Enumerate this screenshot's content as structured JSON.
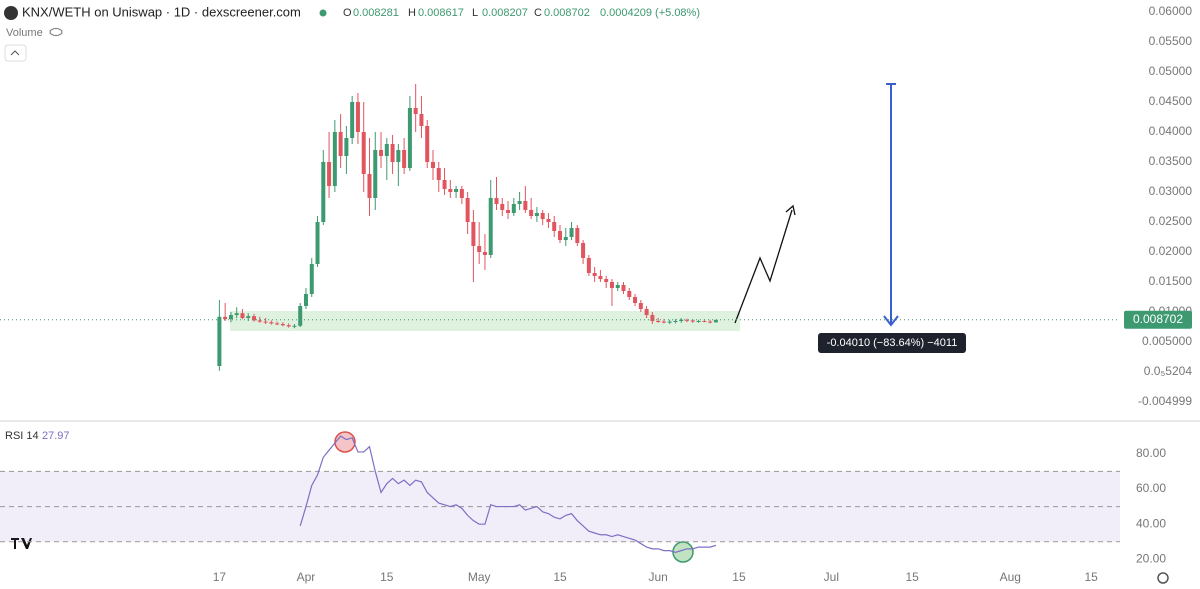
{
  "chart_data": {
    "type": "candlestick",
    "title": "KNX/WETH on Uniswap · 1D · dexscreener.com",
    "volume_label": "Volume",
    "ohlc_labels": [
      "O",
      "H",
      "L",
      "C"
    ],
    "change_label": "0.0004209 (+5.08%)",
    "up_color": "#3d9970",
    "down_color": "#e0555e",
    "x": [
      "03-17",
      "03-18",
      "03-19",
      "03-20",
      "03-21",
      "03-22",
      "03-23",
      "03-24",
      "03-25",
      "03-26",
      "03-27",
      "03-28",
      "03-29",
      "03-30",
      "03-31",
      "04-01",
      "04-02",
      "04-03",
      "04-04",
      "04-05",
      "04-06",
      "04-07",
      "04-08",
      "04-09",
      "04-10",
      "04-11",
      "04-12",
      "04-13",
      "04-14",
      "04-15",
      "04-16",
      "04-17",
      "04-18",
      "04-19",
      "04-20",
      "04-21",
      "04-22",
      "04-23",
      "04-24",
      "04-25",
      "04-26",
      "04-27",
      "04-28",
      "04-29",
      "04-30",
      "05-01",
      "05-02",
      "05-03",
      "05-04",
      "05-05",
      "05-06",
      "05-07",
      "05-08",
      "05-09",
      "05-10",
      "05-11",
      "05-12",
      "05-13",
      "05-14",
      "05-15",
      "05-16",
      "05-17",
      "05-18",
      "05-19",
      "05-20",
      "05-21",
      "05-22",
      "05-23",
      "05-24",
      "05-25",
      "05-26",
      "05-27",
      "05-28",
      "05-29",
      "05-30",
      "05-31",
      "06-01",
      "06-02",
      "06-03",
      "06-04",
      "06-05",
      "06-06",
      "06-07",
      "06-08",
      "06-09",
      "06-10",
      "06-11"
    ],
    "ohlc": [
      [
        0.001,
        0.012,
        0.0002,
        0.0092
      ],
      [
        0.0092,
        0.0115,
        0.0085,
        0.0088
      ],
      [
        0.0088,
        0.01,
        0.0083,
        0.0095
      ],
      [
        0.0095,
        0.0108,
        0.009,
        0.0098
      ],
      [
        0.0098,
        0.0105,
        0.0088,
        0.009
      ],
      [
        0.009,
        0.0098,
        0.0085,
        0.0093
      ],
      [
        0.0093,
        0.0097,
        0.0084,
        0.0086
      ],
      [
        0.0086,
        0.0092,
        0.0082,
        0.0084
      ],
      [
        0.0084,
        0.009,
        0.008,
        0.0083
      ],
      [
        0.0083,
        0.0086,
        0.0079,
        0.0081
      ],
      [
        0.0081,
        0.0084,
        0.0078,
        0.008
      ],
      [
        0.008,
        0.0083,
        0.0076,
        0.0078
      ],
      [
        0.0078,
        0.0081,
        0.0074,
        0.0076
      ],
      [
        0.0076,
        0.008,
        0.0073,
        0.0077
      ],
      [
        0.0077,
        0.0115,
        0.0075,
        0.011
      ],
      [
        0.011,
        0.014,
        0.0105,
        0.013
      ],
      [
        0.013,
        0.019,
        0.0125,
        0.018
      ],
      [
        0.018,
        0.026,
        0.0175,
        0.025
      ],
      [
        0.025,
        0.037,
        0.0245,
        0.035
      ],
      [
        0.035,
        0.04,
        0.029,
        0.031
      ],
      [
        0.031,
        0.042,
        0.03,
        0.04
      ],
      [
        0.04,
        0.043,
        0.034,
        0.036
      ],
      [
        0.036,
        0.041,
        0.033,
        0.039
      ],
      [
        0.039,
        0.046,
        0.038,
        0.045
      ],
      [
        0.045,
        0.0465,
        0.038,
        0.04
      ],
      [
        0.04,
        0.045,
        0.03,
        0.033
      ],
      [
        0.033,
        0.039,
        0.026,
        0.029
      ],
      [
        0.029,
        0.04,
        0.027,
        0.037
      ],
      [
        0.037,
        0.04,
        0.034,
        0.036
      ],
      [
        0.036,
        0.039,
        0.032,
        0.038
      ],
      [
        0.038,
        0.0395,
        0.033,
        0.035
      ],
      [
        0.035,
        0.038,
        0.031,
        0.037
      ],
      [
        0.037,
        0.039,
        0.033,
        0.034
      ],
      [
        0.034,
        0.046,
        0.0335,
        0.044
      ],
      [
        0.044,
        0.048,
        0.04,
        0.043
      ],
      [
        0.043,
        0.046,
        0.039,
        0.041
      ],
      [
        0.041,
        0.042,
        0.034,
        0.035
      ],
      [
        0.035,
        0.037,
        0.032,
        0.034
      ],
      [
        0.034,
        0.035,
        0.03,
        0.032
      ],
      [
        0.032,
        0.034,
        0.0295,
        0.0305
      ],
      [
        0.0305,
        0.032,
        0.029,
        0.03
      ],
      [
        0.03,
        0.031,
        0.029,
        0.0305
      ],
      [
        0.0305,
        0.031,
        0.028,
        0.029
      ],
      [
        0.029,
        0.03,
        0.023,
        0.025
      ],
      [
        0.025,
        0.027,
        0.015,
        0.021
      ],
      [
        0.021,
        0.025,
        0.018,
        0.02
      ],
      [
        0.02,
        0.023,
        0.017,
        0.0195
      ],
      [
        0.0195,
        0.032,
        0.019,
        0.029
      ],
      [
        0.029,
        0.0325,
        0.027,
        0.028
      ],
      [
        0.028,
        0.029,
        0.026,
        0.027
      ],
      [
        0.027,
        0.0285,
        0.0255,
        0.0265
      ],
      [
        0.0265,
        0.029,
        0.026,
        0.028
      ],
      [
        0.028,
        0.03,
        0.027,
        0.0285
      ],
      [
        0.0285,
        0.031,
        0.0265,
        0.027
      ],
      [
        0.027,
        0.029,
        0.0255,
        0.026
      ],
      [
        0.026,
        0.0275,
        0.025,
        0.0265
      ],
      [
        0.0265,
        0.027,
        0.0245,
        0.0255
      ],
      [
        0.0255,
        0.0265,
        0.024,
        0.025
      ],
      [
        0.025,
        0.026,
        0.0225,
        0.0235
      ],
      [
        0.0235,
        0.0245,
        0.0215,
        0.022
      ],
      [
        0.022,
        0.024,
        0.021,
        0.0225
      ],
      [
        0.0225,
        0.025,
        0.022,
        0.024
      ],
      [
        0.024,
        0.0245,
        0.021,
        0.0215
      ],
      [
        0.0215,
        0.022,
        0.018,
        0.019
      ],
      [
        0.019,
        0.0195,
        0.016,
        0.0165
      ],
      [
        0.0165,
        0.0175,
        0.015,
        0.016
      ],
      [
        0.016,
        0.017,
        0.015,
        0.0155
      ],
      [
        0.0155,
        0.016,
        0.014,
        0.015
      ],
      [
        0.015,
        0.0155,
        0.011,
        0.014
      ],
      [
        0.014,
        0.015,
        0.0135,
        0.0145
      ],
      [
        0.0145,
        0.015,
        0.013,
        0.0135
      ],
      [
        0.0135,
        0.014,
        0.012,
        0.0125
      ],
      [
        0.0125,
        0.013,
        0.011,
        0.0115
      ],
      [
        0.0115,
        0.012,
        0.01,
        0.0105
      ],
      [
        0.0105,
        0.011,
        0.009,
        0.0095
      ],
      [
        0.0095,
        0.01,
        0.008,
        0.0085
      ],
      [
        0.0085,
        0.009,
        0.0082,
        0.0084
      ],
      [
        0.0084,
        0.0088,
        0.0081,
        0.0083
      ],
      [
        0.0083,
        0.0087,
        0.008,
        0.0084
      ],
      [
        0.0084,
        0.0088,
        0.0081,
        0.0085
      ],
      [
        0.0085,
        0.009,
        0.0082,
        0.0087
      ],
      [
        0.0087,
        0.0089,
        0.0083,
        0.0086
      ],
      [
        0.0086,
        0.0088,
        0.0082,
        0.0084
      ],
      [
        0.0084,
        0.0087,
        0.0082,
        0.0085
      ],
      [
        0.0085,
        0.0088,
        0.0083,
        0.0084
      ],
      [
        0.0084,
        0.0087,
        0.0081,
        0.0083
      ],
      [
        0.008281,
        0.008617,
        0.008207,
        0.008702
      ]
    ],
    "xlim": [
      "02-07",
      "08-20"
    ],
    "xticks": [
      {
        "value": "03-17",
        "label": "17"
      },
      {
        "value": "04-01",
        "label": "Apr"
      },
      {
        "value": "04-15",
        "label": "15"
      },
      {
        "value": "05-01",
        "label": "May"
      },
      {
        "value": "05-15",
        "label": "15"
      },
      {
        "value": "06-01",
        "label": "Jun"
      },
      {
        "value": "06-15",
        "label": "15"
      },
      {
        "value": "07-01",
        "label": "Jul"
      },
      {
        "value": "07-15",
        "label": "15"
      },
      {
        "value": "08-01",
        "label": "Aug"
      },
      {
        "value": "08-15",
        "label": "15"
      }
    ],
    "ylim": [
      -0.008,
      0.062
    ],
    "yticks": [
      {
        "value": 0.06,
        "label": "0.06000"
      },
      {
        "value": 0.055,
        "label": "0.05500"
      },
      {
        "value": 0.05,
        "label": "0.05000"
      },
      {
        "value": 0.045,
        "label": "0.04500"
      },
      {
        "value": 0.04,
        "label": "0.04000"
      },
      {
        "value": 0.035,
        "label": "0.03500"
      },
      {
        "value": 0.03,
        "label": "0.03000"
      },
      {
        "value": 0.025,
        "label": "0.02500"
      },
      {
        "value": 0.02,
        "label": "0.02000"
      },
      {
        "value": 0.015,
        "label": "0.01500"
      },
      {
        "value": 0.01,
        "label": "0.01000"
      },
      {
        "value": 0.005,
        "label": "0.005000"
      },
      {
        "value": 5.204e-06,
        "label": "0.0₅5204"
      },
      {
        "value": -0.004999,
        "label": "-0.004999"
      }
    ],
    "measure_label": "-0.04010 (−83.64%) −4011",
    "rsi": {
      "name": "RSI 14",
      "color": "#7e6fc4",
      "values": [
        null,
        null,
        null,
        null,
        null,
        null,
        null,
        null,
        null,
        null,
        null,
        null,
        null,
        null,
        39,
        50,
        62,
        68,
        78,
        82,
        86,
        90,
        88,
        89,
        81,
        81,
        84,
        70,
        58,
        63,
        66,
        63,
        65,
        62,
        65,
        64,
        58,
        55,
        52,
        51,
        50,
        51,
        49,
        45,
        42,
        40,
        40,
        51,
        50,
        50,
        50,
        50,
        51,
        48,
        49,
        50,
        47,
        46,
        44,
        43,
        45,
        46,
        42,
        39,
        36,
        35,
        34,
        34,
        33,
        34,
        33,
        32,
        31,
        29,
        27,
        26,
        26,
        25,
        25,
        24,
        25,
        26,
        26,
        27,
        27,
        27,
        27.97
      ],
      "ylim": [
        14,
        98
      ],
      "yticks": [
        {
          "value": 80,
          "label": "80.00"
        },
        {
          "value": 60,
          "label": "60.00"
        },
        {
          "value": 40,
          "label": "40.00"
        },
        {
          "value": 20,
          "label": "20.00"
        }
      ],
      "band": [
        30,
        70
      ],
      "midline": 50
    }
  }
}
